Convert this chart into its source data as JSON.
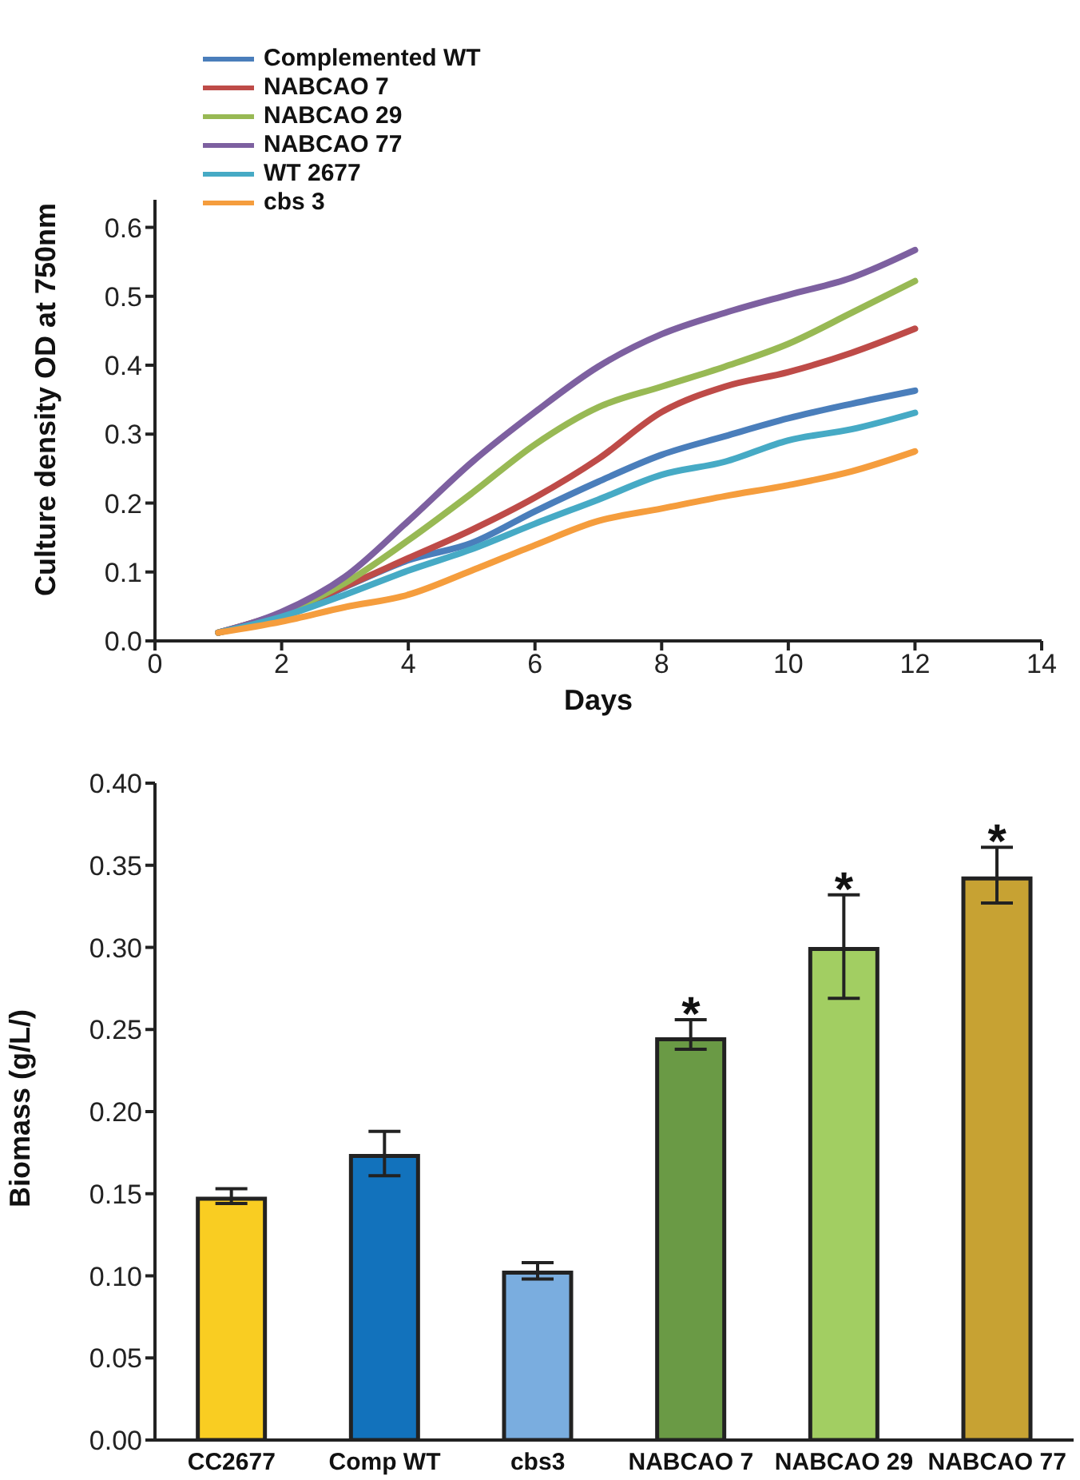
{
  "chart_data": [
    {
      "type": "line",
      "xlabel": "Days",
      "ylabel": "Culture density OD at 750nm",
      "x": [
        1,
        2,
        3,
        4,
        5,
        6,
        7,
        8,
        9,
        10,
        11,
        12
      ],
      "xlim": [
        0,
        14
      ],
      "xticks": [
        0,
        2,
        4,
        6,
        8,
        10,
        12,
        14
      ],
      "ylim": [
        0,
        0.64
      ],
      "yticks": [
        {
          "value": 0,
          "label": "0.0"
        },
        0.1,
        0.2,
        0.3,
        0.4,
        0.5,
        0.6
      ],
      "legend": "top left",
      "grid": false,
      "marker": "none",
      "line_style": "solid",
      "series": [
        {
          "name": "Complemented WT",
          "color": "#4a7ebb",
          "values": [
            0.012,
            0.037,
            0.078,
            0.117,
            0.142,
            0.188,
            0.231,
            0.27,
            0.297,
            0.323,
            0.344,
            0.363
          ]
        },
        {
          "name": "NABCAO 7",
          "color": "#be4b48",
          "values": [
            0.012,
            0.04,
            0.079,
            0.12,
            0.161,
            0.208,
            0.264,
            0.332,
            0.369,
            0.39,
            0.418,
            0.453
          ]
        },
        {
          "name": "NABCAO 29",
          "color": "#98b954",
          "values": [
            0.012,
            0.04,
            0.084,
            0.146,
            0.214,
            0.285,
            0.339,
            0.369,
            0.398,
            0.431,
            0.476,
            0.522
          ]
        },
        {
          "name": "NABCAO 77",
          "color": "#7d60a0",
          "values": [
            0.012,
            0.042,
            0.093,
            0.174,
            0.259,
            0.332,
            0.398,
            0.445,
            0.476,
            0.502,
            0.527,
            0.567
          ]
        },
        {
          "name": "WT 2677",
          "color": "#46aac5",
          "values": [
            0.012,
            0.035,
            0.067,
            0.102,
            0.133,
            0.17,
            0.205,
            0.241,
            0.26,
            0.291,
            0.307,
            0.331
          ]
        },
        {
          "name": "cbs 3",
          "color": "#f59d3d",
          "values": [
            0.012,
            0.028,
            0.049,
            0.067,
            0.102,
            0.139,
            0.174,
            0.192,
            0.21,
            0.226,
            0.246,
            0.275
          ]
        }
      ]
    },
    {
      "type": "bar",
      "ylabel": "Biomass (g/L/)",
      "categories": [
        "CC2677",
        "Comp WT",
        "cbs3",
        "NABCAO 7",
        "NABCAO 29",
        "NABCAO 77"
      ],
      "values": [
        0.147,
        0.173,
        0.102,
        0.244,
        0.299,
        0.342
      ],
      "colors": [
        "#f9cd22",
        "#1272bc",
        "#7aaddf",
        "#6a9a45",
        "#a2ce62",
        "#c7a233"
      ],
      "errors": [
        [
          0.144,
          0.153
        ],
        [
          0.161,
          0.188
        ],
        [
          0.098,
          0.108
        ],
        [
          0.238,
          0.256
        ],
        [
          0.269,
          0.332
        ],
        [
          0.327,
          0.361
        ]
      ],
      "ylim": [
        0,
        0.4
      ],
      "yticks": [
        {
          "value": 0,
          "label": "0.00"
        },
        {
          "value": 0.05,
          "label": "0.05"
        },
        {
          "value": 0.1,
          "label": "0.10"
        },
        {
          "value": 0.15,
          "label": "0.15"
        },
        {
          "value": 0.2,
          "label": "0.20"
        },
        {
          "value": 0.25,
          "label": "0.25"
        },
        {
          "value": 0.3,
          "label": "0.30"
        },
        {
          "value": 0.35,
          "label": "0.35"
        },
        {
          "value": 0.4,
          "label": "0.40"
        }
      ],
      "grid": false,
      "annotations": [
        {
          "text": "*",
          "x": "NABCAO 7",
          "y": 0.256
        },
        {
          "text": "*",
          "x": "NABCAO 29",
          "y": 0.332
        },
        {
          "text": "*",
          "x": "NABCAO 77",
          "y": 0.361
        }
      ]
    }
  ]
}
